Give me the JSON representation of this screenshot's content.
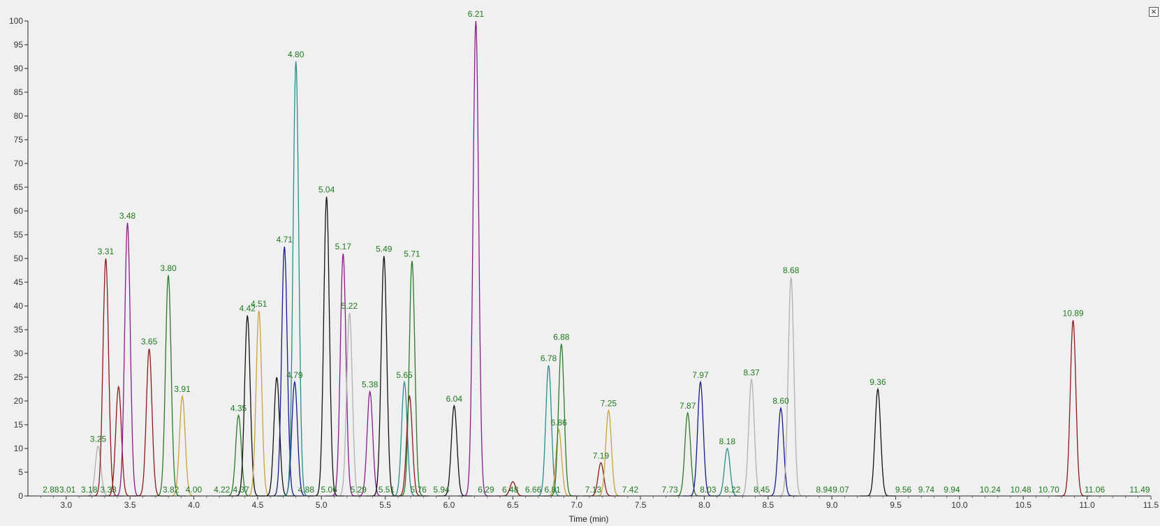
{
  "window": {
    "close_label": "×"
  },
  "chart_data": {
    "type": "line",
    "xlabel": "Time (min)",
    "ylabel": "",
    "xlim": [
      2.7,
      11.5
    ],
    "ylim": [
      0,
      100
    ],
    "x_ticks": [
      "3.0",
      "3.5",
      "4.0",
      "4.5",
      "5.0",
      "5.5",
      "6.0",
      "6.5",
      "7.0",
      "7.5",
      "8.0",
      "8.5",
      "9.0",
      "9.5",
      "10.0",
      "10.5",
      "11.0",
      "11.5"
    ],
    "y_ticks": [
      "0",
      "5",
      "10",
      "15",
      "20",
      "25",
      "30",
      "35",
      "40",
      "45",
      "50",
      "55",
      "60",
      "65",
      "70",
      "75",
      "80",
      "85",
      "90",
      "95",
      "100"
    ],
    "grid": false,
    "background": "#f0f0f0",
    "label_color": "#1f7a1f",
    "peaks": [
      {
        "rt": 3.25,
        "height": 10.5,
        "label": "3.25",
        "color": "#b0b0b0"
      },
      {
        "rt": 3.31,
        "height": 50,
        "label": "3.31",
        "color": "#8b1a1a"
      },
      {
        "rt": 3.41,
        "height": 23,
        "label": "",
        "color": "#8b1a1a"
      },
      {
        "rt": 3.48,
        "height": 57.5,
        "label": "3.48",
        "color": "#8b1a8b"
      },
      {
        "rt": 3.65,
        "height": 31,
        "label": "3.65",
        "color": "#8b1a1a"
      },
      {
        "rt": 3.8,
        "height": 46.5,
        "label": "3.80",
        "color": "#2a7a2a"
      },
      {
        "rt": 3.91,
        "height": 21,
        "label": "3.91",
        "color": "#c8a03c"
      },
      {
        "rt": 4.35,
        "height": 17,
        "label": "4.35",
        "color": "#2a7a2a"
      },
      {
        "rt": 4.42,
        "height": 38,
        "label": "4.42",
        "color": "#111111"
      },
      {
        "rt": 4.51,
        "height": 39,
        "label": "4.51",
        "color": "#c8a03c"
      },
      {
        "rt": 4.65,
        "height": 25,
        "label": "",
        "color": "#111111"
      },
      {
        "rt": 4.71,
        "height": 52.5,
        "label": "4.71",
        "color": "#1a1a8b"
      },
      {
        "rt": 4.79,
        "height": 24,
        "label": "4.79",
        "color": "#1a1a8b"
      },
      {
        "rt": 4.8,
        "height": 91.5,
        "label": "4.80",
        "color": "#2a8b8b"
      },
      {
        "rt": 5.04,
        "height": 63,
        "label": "5.04",
        "color": "#111111"
      },
      {
        "rt": 5.17,
        "height": 51,
        "label": "5.17",
        "color": "#8b1a8b"
      },
      {
        "rt": 5.22,
        "height": 38.5,
        "label": "5.22",
        "color": "#b0b0b0"
      },
      {
        "rt": 5.38,
        "height": 22,
        "label": "5.38",
        "color": "#8b1a8b"
      },
      {
        "rt": 5.49,
        "height": 50.5,
        "label": "5.49",
        "color": "#111111"
      },
      {
        "rt": 5.65,
        "height": 24,
        "label": "5.65",
        "color": "#2a8b8b"
      },
      {
        "rt": 5.69,
        "height": 21,
        "label": "",
        "color": "#8b1a1a"
      },
      {
        "rt": 5.71,
        "height": 49.5,
        "label": "5.71",
        "color": "#2a7a2a"
      },
      {
        "rt": 6.04,
        "height": 19,
        "label": "6.04",
        "color": "#111111"
      },
      {
        "rt": 6.21,
        "height": 100,
        "label": "6.21",
        "color": "#8b1a8b"
      },
      {
        "rt": 6.5,
        "height": 3,
        "label": "",
        "color": "#8b1a1a"
      },
      {
        "rt": 6.78,
        "height": 27.5,
        "label": "6.78",
        "color": "#2a8b8b"
      },
      {
        "rt": 6.86,
        "height": 14,
        "label": "6.86",
        "color": "#c8a03c"
      },
      {
        "rt": 6.88,
        "height": 32,
        "label": "6.88",
        "color": "#2a7a2a"
      },
      {
        "rt": 7.19,
        "height": 7,
        "label": "7.19",
        "color": "#8b1a1a"
      },
      {
        "rt": 7.25,
        "height": 18,
        "label": "7.25",
        "color": "#c8a03c"
      },
      {
        "rt": 7.87,
        "height": 17.5,
        "label": "7.87",
        "color": "#2a7a2a"
      },
      {
        "rt": 7.97,
        "height": 24,
        "label": "7.97",
        "color": "#1a1a8b"
      },
      {
        "rt": 8.18,
        "height": 10,
        "label": "8.18",
        "color": "#2a8b8b"
      },
      {
        "rt": 8.37,
        "height": 24.5,
        "label": "8.37",
        "color": "#b0b0b0"
      },
      {
        "rt": 8.6,
        "height": 18.5,
        "label": "8.60",
        "color": "#1a1a8b"
      },
      {
        "rt": 8.68,
        "height": 46,
        "label": "8.68",
        "color": "#b0b0b0"
      },
      {
        "rt": 9.36,
        "height": 22.5,
        "label": "9.36",
        "color": "#111111"
      },
      {
        "rt": 10.89,
        "height": 37,
        "label": "10.89",
        "color": "#8b1a1a"
      }
    ],
    "baseline_labels": [
      "2.88",
      "3.01",
      "3.18",
      "3.33",
      "3.82",
      "4.00",
      "4.22",
      "4.37",
      "4.88",
      "5.06",
      "5.29",
      "5.51",
      "5.76",
      "5.94",
      "6.29",
      "6.48",
      "6.66",
      "6.81",
      "7.13",
      "7.42",
      "7.73",
      "8.03",
      "8.22",
      "8.45",
      "8.94",
      "9.07",
      "9.56",
      "9.74",
      "9.94",
      "10.24",
      "10.48",
      "10.70",
      "11.06",
      "11.49"
    ]
  }
}
